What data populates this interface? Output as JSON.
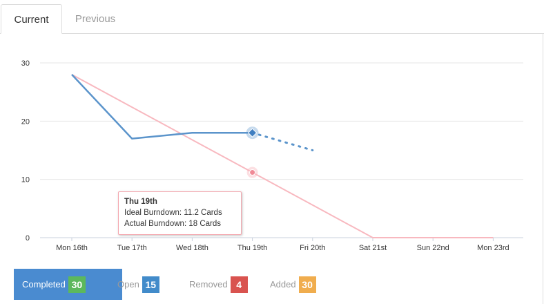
{
  "tabs": [
    {
      "label": "Current",
      "active": true
    },
    {
      "label": "Previous",
      "active": false
    }
  ],
  "chart_data": {
    "type": "line",
    "categories": [
      "Mon 16th",
      "Tue 17th",
      "Wed 18th",
      "Thu 19th",
      "Fri 20th",
      "Sat 21st",
      "Sun 22nd",
      "Mon 23rd"
    ],
    "ylim": [
      0,
      30
    ],
    "yticks": [
      "0",
      "10",
      "20",
      "30"
    ],
    "series": [
      {
        "name": "Ideal Burndown",
        "color": "#f8b8bf",
        "values": [
          28,
          22.4,
          16.8,
          11.2,
          5.6,
          0,
          0,
          0
        ]
      },
      {
        "name": "Actual Burndown",
        "color": "#5b94cb",
        "values": [
          28,
          17,
          18,
          18,
          null,
          null,
          null,
          null
        ]
      },
      {
        "color": "#5b94cb",
        "style": "dotted",
        "values": [
          null,
          null,
          null,
          18,
          15,
          null,
          null,
          null
        ]
      }
    ],
    "grid": true,
    "tooltip": {
      "title": "Thu 19th",
      "lines": [
        "Ideal Burndown: 11.2 Cards",
        "Actual Burndown: 18 Cards"
      ]
    }
  },
  "legend": [
    {
      "label": "Completed",
      "count": "30",
      "color": "#5cb85c",
      "active": true
    },
    {
      "label": "Open",
      "count": "15",
      "color": "#428bca",
      "active": false
    },
    {
      "label": "Removed",
      "count": "4",
      "color": "#d9534f",
      "active": false
    },
    {
      "label": "Added",
      "count": "30",
      "color": "#f0ad4e",
      "active": false
    }
  ]
}
